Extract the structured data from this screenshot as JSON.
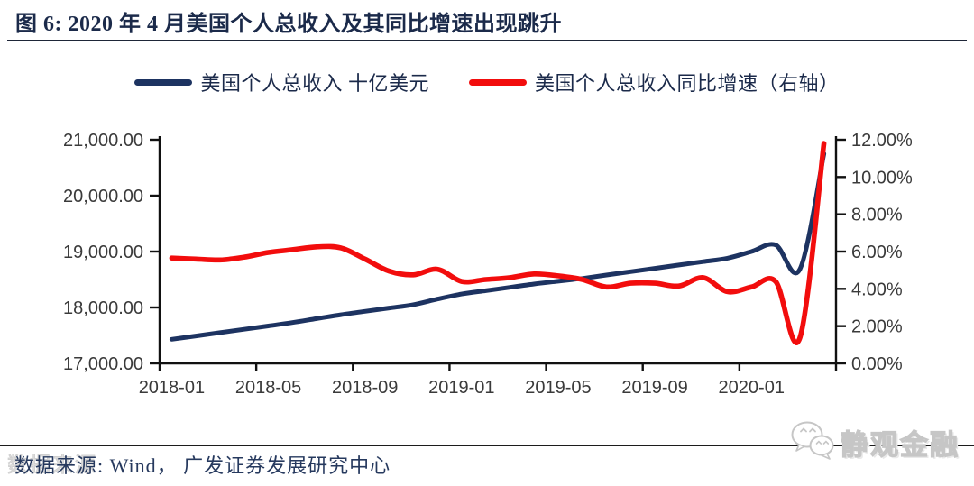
{
  "title": {
    "label": "图 6:  2020 年 4 月美国个人总收入及其同比增速出现跳升"
  },
  "legend": [
    {
      "label": "美国个人总收入 十亿美元",
      "color": "#1d3361"
    },
    {
      "label": "美国个人总收入同比增速（右轴）",
      "color": "#f20d0d"
    }
  ],
  "source": {
    "label": "数据来源: Wind， 广发证券发展研究中心"
  },
  "watermarks": {
    "account_name": "静观金融",
    "ghost_text": "数据来源",
    "icon": "wechat-icon"
  },
  "colors": {
    "income_line": "#1d3361",
    "yoy_line": "#f20d0d",
    "title_text": "#1b2a4a",
    "axis_text": "#3a3a3a",
    "axis_line": "#111111",
    "watermark_gray": "#c6c6c6",
    "divider": "#1c1c1c"
  },
  "chart_data": {
    "type": "line",
    "title": "2020 年 4 月美国个人总收入及其同比增速出现跳升",
    "grid": false,
    "legend_position": "top",
    "x": [
      "2018-01",
      "2018-02",
      "2018-03",
      "2018-04",
      "2018-05",
      "2018-06",
      "2018-07",
      "2018-08",
      "2018-09",
      "2018-10",
      "2018-11",
      "2018-12",
      "2019-01",
      "2019-02",
      "2019-03",
      "2019-04",
      "2019-05",
      "2019-06",
      "2019-07",
      "2019-08",
      "2019-09",
      "2019-10",
      "2019-11",
      "2019-12",
      "2020-01",
      "2020-02",
      "2020-03",
      "2020-04"
    ],
    "x_tick_labels": [
      "2018-01",
      "2018-05",
      "2018-09",
      "2019-01",
      "2019-05",
      "2019-09",
      "2020-01"
    ],
    "x_tick_positions": [
      0,
      4,
      8,
      12,
      16,
      20,
      24
    ],
    "left_axis": {
      "label": "美国个人总收入 十亿美元",
      "min": 17000,
      "max": 21000,
      "tick_labels": [
        "21,000.00",
        "20,000.00",
        "19,000.00",
        "18,000.00",
        "17,000.00"
      ]
    },
    "right_axis": {
      "label": "美国个人总收入同比增速 %",
      "min": 0,
      "max": 12,
      "tick_labels": [
        "12.00%",
        "10.00%",
        "8.00%",
        "6.00%",
        "4.00%",
        "2.00%",
        "0.00%"
      ]
    },
    "series": [
      {
        "name": "美国个人总收入 十亿美元",
        "axis": "left",
        "color": "#1d3361",
        "values": [
          17430,
          17490,
          17550,
          17610,
          17670,
          17730,
          17800,
          17870,
          17930,
          17990,
          18050,
          18150,
          18240,
          18300,
          18360,
          18420,
          18470,
          18520,
          18580,
          18640,
          18700,
          18760,
          18820,
          18880,
          19000,
          19120,
          18680,
          20750
        ]
      },
      {
        "name": "美国个人总收入同比增速（右轴）",
        "axis": "right",
        "color": "#f20d0d",
        "values": [
          5.65,
          5.6,
          5.55,
          5.7,
          5.95,
          6.1,
          6.25,
          6.2,
          5.6,
          4.95,
          4.75,
          5.05,
          4.4,
          4.5,
          4.6,
          4.8,
          4.7,
          4.5,
          4.1,
          4.3,
          4.3,
          4.15,
          4.6,
          3.85,
          4.1,
          4.4,
          1.35,
          11.8
        ]
      }
    ]
  }
}
